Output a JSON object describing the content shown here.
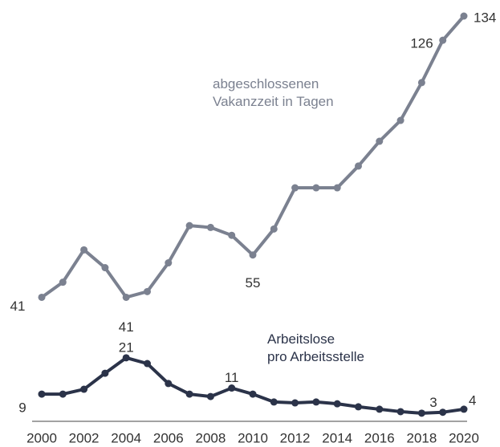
{
  "chart_data": {
    "type": "line",
    "x": [
      2000,
      2001,
      2002,
      2003,
      2004,
      2005,
      2006,
      2007,
      2008,
      2009,
      2010,
      2011,
      2012,
      2013,
      2014,
      2015,
      2016,
      2017,
      2018,
      2019,
      2020
    ],
    "xlim": [
      2000,
      2020
    ],
    "xticks": [
      2000,
      2002,
      2004,
      2006,
      2008,
      2010,
      2012,
      2014,
      2016,
      2018,
      2020
    ],
    "ylim": [
      0,
      134
    ],
    "series": [
      {
        "name": "abgeschlossenen\nVakanzzeit in Tagen",
        "color": "#7b8190",
        "values": [
          41,
          46,
          56.7,
          50.8,
          41,
          42.9,
          52.4,
          64.7,
          64.1,
          61.5,
          55,
          63.6,
          77.2,
          77.2,
          77.2,
          84.4,
          92.6,
          99.5,
          112,
          126,
          134
        ],
        "value_labels": [
          "41",
          null,
          null,
          null,
          "41",
          null,
          null,
          null,
          null,
          null,
          "55",
          null,
          null,
          null,
          null,
          null,
          null,
          null,
          null,
          "126",
          "134"
        ]
      },
      {
        "name": "Arbeitslose\npro Arbeitsstelle",
        "color": "#2b3349",
        "values": [
          9,
          9,
          10.6,
          15.9,
          21,
          19.1,
          12.5,
          9,
          8.2,
          11,
          9,
          6.4,
          6.1,
          6.4,
          5.8,
          4.8,
          4,
          3.2,
          2.7,
          3,
          4
        ],
        "value_labels": [
          "9",
          null,
          null,
          null,
          "21",
          null,
          null,
          null,
          null,
          "11",
          null,
          null,
          null,
          null,
          null,
          null,
          null,
          null,
          null,
          "3",
          "4"
        ]
      }
    ]
  }
}
